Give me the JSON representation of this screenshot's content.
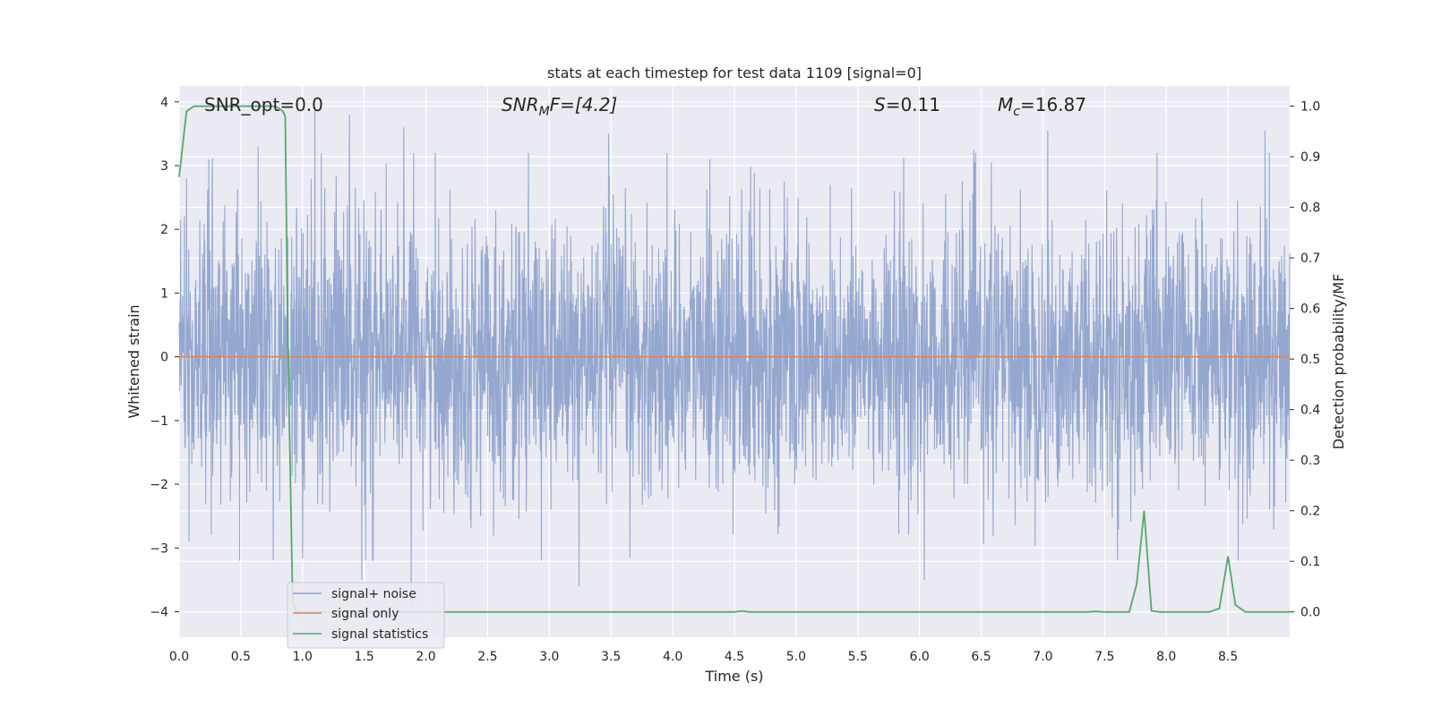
{
  "chart_data": {
    "type": "line",
    "title": "stats at each timestep for test data 1109 [signal=0]",
    "xlabel": "Time (s)",
    "ylabel": "Whitened strain",
    "ylabel_right": "Detection probability/MF",
    "xlim": [
      0.0,
      9.0
    ],
    "ylim": [
      -4.4,
      4.25
    ],
    "ylim_right": [
      -0.05,
      1.04
    ],
    "x_ticks": [
      "0.0",
      "0.5",
      "1.0",
      "1.5",
      "2.0",
      "2.5",
      "3.0",
      "3.5",
      "4.0",
      "4.5",
      "5.0",
      "5.5",
      "6.0",
      "6.5",
      "7.0",
      "7.5",
      "8.0",
      "8.5"
    ],
    "y_ticks": [
      "−4",
      "−3",
      "−2",
      "−1",
      "0",
      "1",
      "2",
      "3",
      "4"
    ],
    "y_right_ticks": [
      "0.0",
      "0.1",
      "0.2",
      "0.3",
      "0.4",
      "0.5",
      "0.6",
      "0.7",
      "0.8",
      "0.9",
      "1.0"
    ],
    "grid": true,
    "legend_position": "lower-left",
    "annotations": {
      "snr_opt": "SNR_opt=0.0",
      "snr_mf_italic": "SNR",
      "snr_mf_sub": "M",
      "snr_mf_rest": "F=[4.2]",
      "s_italic": "S",
      "s_rest": "=0.11",
      "mc_italic": "M",
      "mc_sub": "c",
      "mc_rest": "=16.87"
    },
    "series": [
      {
        "name": "signal+ noise",
        "color": "#8fa3cc",
        "axis": "left",
        "description_values": "whitened noise samples, approx. standard normal, range about -3.6 to 3.9",
        "peak_samples": [
          [
            0.06,
            2.8
          ],
          [
            0.24,
            3.1
          ],
          [
            0.64,
            3.3
          ],
          [
            1.1,
            3.9
          ],
          [
            1.38,
            3.8
          ],
          [
            1.82,
            3.6
          ],
          [
            3.48,
            3.5
          ],
          [
            4.3,
            3.1
          ],
          [
            6.44,
            3.25
          ],
          [
            7.04,
            3.55
          ],
          [
            8.8,
            3.55
          ],
          [
            0.08,
            -2.9
          ],
          [
            1.88,
            -3.9
          ],
          [
            3.24,
            -3.6
          ],
          [
            6.04,
            -3.5
          ],
          [
            1.48,
            -3.5
          ]
        ]
      },
      {
        "name": "signal only",
        "color": "#dd8452",
        "axis": "left",
        "x": [
          0.0,
          9.0
        ],
        "y": [
          0.0,
          0.0
        ]
      },
      {
        "name": "signal statistics",
        "color": "#55a868",
        "axis": "right",
        "x": [
          0.0,
          0.06,
          0.12,
          0.2,
          0.4,
          0.6,
          0.7,
          0.78,
          0.84,
          0.86,
          0.88,
          0.92,
          0.95,
          1.0,
          1.5,
          2.0,
          2.5,
          3.0,
          3.5,
          4.0,
          4.5,
          4.56,
          4.62,
          5.0,
          5.5,
          6.0,
          6.5,
          7.0,
          7.36,
          7.42,
          7.5,
          7.7,
          7.76,
          7.82,
          7.88,
          7.95,
          8.0,
          8.35,
          8.43,
          8.5,
          8.56,
          8.64,
          8.7,
          8.8,
          8.9,
          9.0
        ],
        "y": [
          0.86,
          0.99,
          1.0,
          1.0,
          1.0,
          1.0,
          1.0,
          1.0,
          0.99,
          0.98,
          0.55,
          0.02,
          0.0,
          0.0,
          0.0,
          0.0,
          0.0,
          0.0,
          0.0,
          0.0,
          0.0,
          0.002,
          0.0,
          0.0,
          0.0,
          0.0,
          0.0,
          0.0,
          0.0,
          0.001,
          0.0,
          0.0,
          0.055,
          0.2,
          0.002,
          0.0,
          0.0,
          0.0,
          0.007,
          0.11,
          0.014,
          0.0,
          0.0,
          0.0,
          0.0,
          0.0
        ]
      }
    ]
  }
}
